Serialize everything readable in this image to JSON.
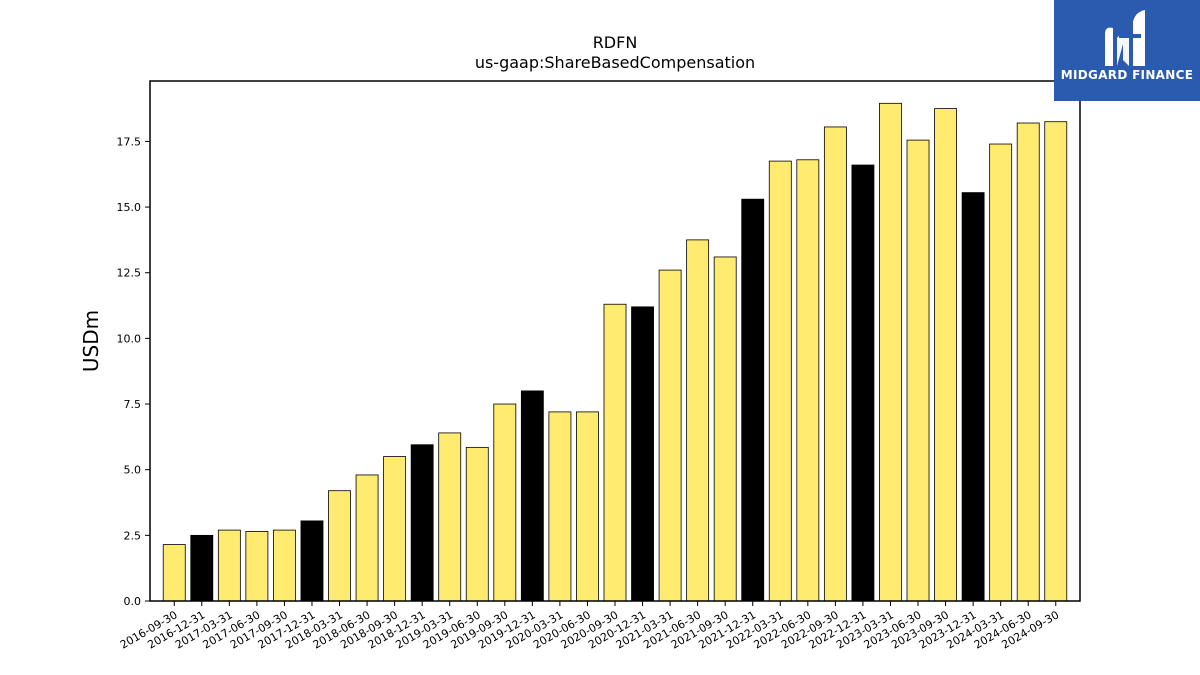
{
  "brand": {
    "name": "MIDGARD FINANCE",
    "background": "#2b5bae",
    "icon": "midgard-logo-icon"
  },
  "chart_data": {
    "type": "bar",
    "title": "RDFN",
    "subtitle": "us-gaap:ShareBasedCompensation",
    "xlabel": "",
    "ylabel": "USDm",
    "ylim": [
      0,
      19.8
    ],
    "yticks": [
      0.0,
      2.5,
      5.0,
      7.5,
      10.0,
      12.5,
      15.0,
      17.5
    ],
    "ytick_labels": [
      "0.0",
      "2.5",
      "5.0",
      "7.5",
      "10.0",
      "12.5",
      "15.0",
      "17.5"
    ],
    "grid": false,
    "colors": {
      "quarter": "#ffeb70",
      "year_end": "#000000",
      "edge": "#000000"
    },
    "categories": [
      "2016-09-30",
      "2016-12-31",
      "2017-03-31",
      "2017-06-30",
      "2017-09-30",
      "2017-12-31",
      "2018-03-31",
      "2018-06-30",
      "2018-09-30",
      "2018-12-31",
      "2019-03-31",
      "2019-06-30",
      "2019-09-30",
      "2019-12-31",
      "2020-03-31",
      "2020-06-30",
      "2020-09-30",
      "2020-12-31",
      "2021-03-31",
      "2021-06-30",
      "2021-09-30",
      "2021-12-31",
      "2022-03-31",
      "2022-06-30",
      "2022-09-30",
      "2022-12-31",
      "2023-03-31",
      "2023-06-30",
      "2023-09-30",
      "2023-12-31",
      "2024-03-31",
      "2024-06-30",
      "2024-09-30"
    ],
    "values": [
      2.15,
      2.5,
      2.7,
      2.65,
      2.7,
      3.05,
      4.2,
      4.8,
      5.5,
      5.95,
      6.4,
      5.85,
      7.5,
      8.0,
      7.2,
      7.2,
      11.3,
      11.2,
      12.6,
      13.75,
      13.1,
      15.3,
      16.75,
      16.8,
      18.05,
      16.6,
      18.95,
      17.55,
      18.75,
      15.55,
      17.4,
      18.2,
      18.25
    ],
    "year_end": [
      false,
      true,
      false,
      false,
      false,
      true,
      false,
      false,
      false,
      true,
      false,
      false,
      false,
      true,
      false,
      false,
      false,
      true,
      false,
      false,
      false,
      true,
      false,
      false,
      false,
      true,
      false,
      false,
      false,
      true,
      false,
      false,
      false
    ]
  }
}
